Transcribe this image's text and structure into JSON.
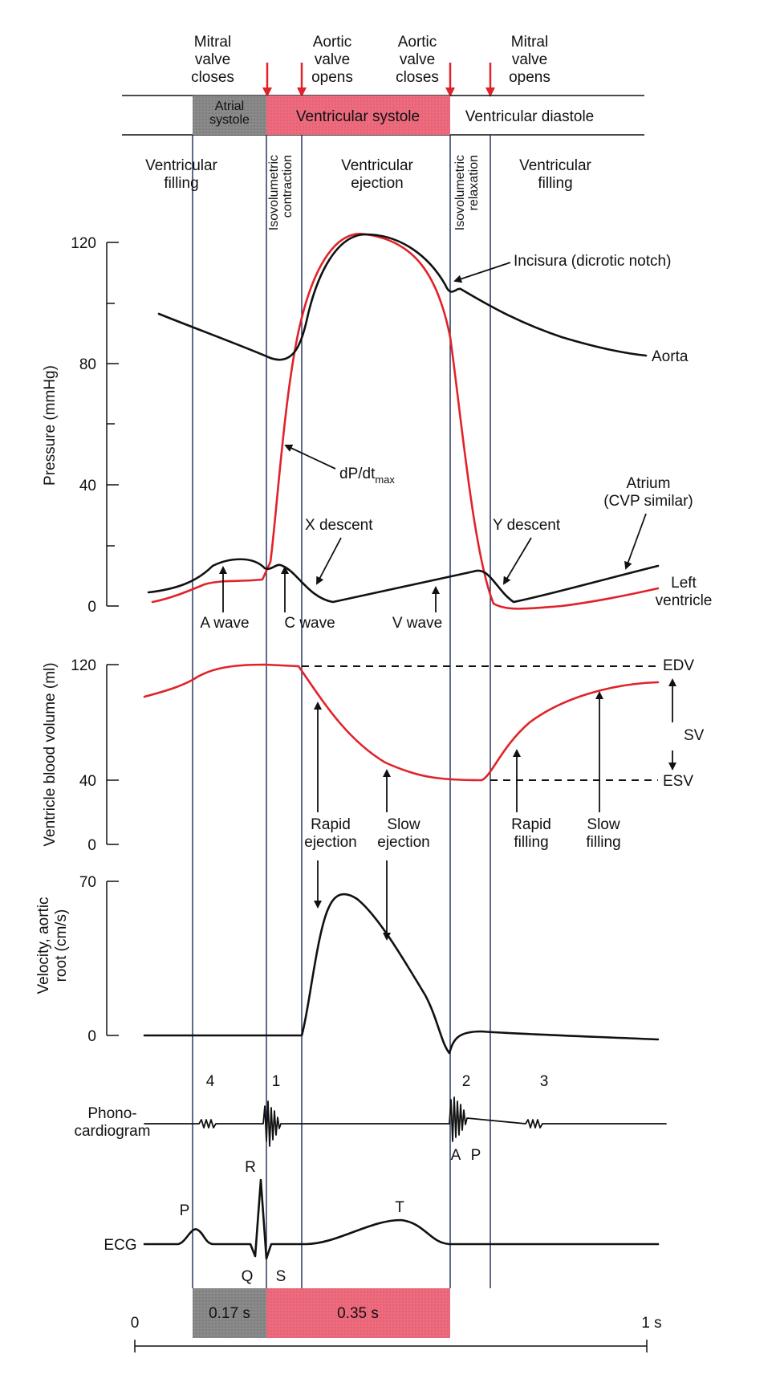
{
  "events": {
    "mitral_closes": "Mitral\nvalve\ncloses",
    "aortic_opens": "Aortic\nvalve\nopens",
    "aortic_closes": "Aortic\nvalve\ncloses",
    "mitral_opens": "Mitral\nvalve\nopens"
  },
  "phases_bar": {
    "atrial_systole": "Atrial\nsystole",
    "ventricular_systole": "Ventricular systole",
    "ventricular_diastole": "Ventricular diastole"
  },
  "sub_phases": {
    "ventricular_filling_1": "Ventricular\nfilling",
    "isovolumetric_contraction": "Isovolumetric\ncontraction",
    "ventricular_ejection": "Ventricular\nejection",
    "isovolumetric_relaxation": "Isovolumetric\nrelaxation",
    "ventricular_filling_2": "Ventricular\nfilling"
  },
  "pressure": {
    "ylabel": "Pressure (mmHg)",
    "ticks": [
      "120",
      "80",
      "40",
      "0"
    ],
    "labels": {
      "incisura": "Incisura (dicrotic notch)",
      "aorta": "Aorta",
      "dpdt": "dP/dt",
      "dpdt_sub": "max",
      "x_descent": "X descent",
      "y_descent": "Y descent",
      "atrium": "Atrium\n(CVP similar)",
      "left_ventricle": "Left\nventricle",
      "a_wave": "A wave",
      "c_wave": "C wave",
      "v_wave": "V wave"
    }
  },
  "volume": {
    "ylabel": "Ventricle blood volume (ml)",
    "ticks": [
      "120",
      "40",
      "0"
    ],
    "labels": {
      "edv": "EDV",
      "sv": "SV",
      "esv": "ESV",
      "rapid_ejection": "Rapid\nejection",
      "slow_ejection": "Slow\nejection",
      "rapid_filling": "Rapid\nfilling",
      "slow_filling": "Slow\nfilling"
    }
  },
  "velocity": {
    "ylabel": "Velocity, aortic\nroot (cm/s)",
    "ticks": [
      "70",
      "0"
    ]
  },
  "phono": {
    "label": "Phono-\ncardiogram",
    "sounds": [
      "4",
      "1",
      "2",
      "3"
    ],
    "components": [
      "A",
      "P"
    ]
  },
  "ecg": {
    "label": "ECG",
    "waves": [
      "P",
      "R",
      "Q",
      "S",
      "T"
    ]
  },
  "timeline": {
    "start": "0",
    "end": "1 s",
    "atrial_duration": "0.17 s",
    "ventricular_duration": "0.35 s"
  },
  "colors": {
    "red": "#e0232a",
    "pink_band": "#ec6b7d",
    "gray_band": "#8a8a8a"
  }
}
